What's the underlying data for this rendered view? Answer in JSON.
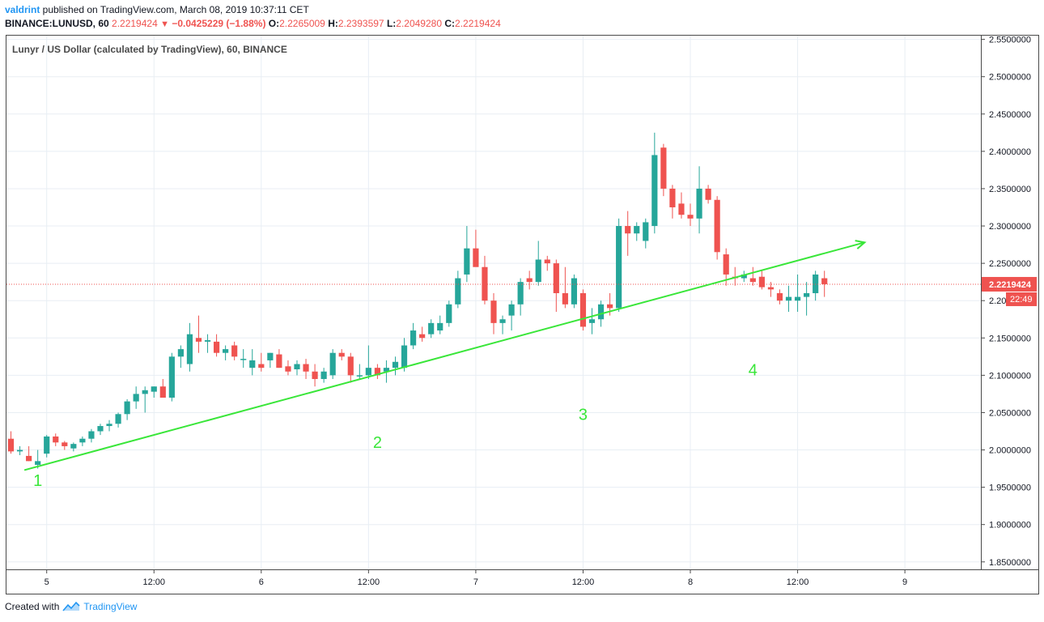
{
  "header": {
    "user": "valdrint",
    "published_text": " published on TradingView.com, March 08, 2019 10:37:11 CET",
    "symbol_interval": "BINANCE:LUNUSD, 60",
    "last_price": "2.2219424",
    "change": "−0.0425229 (−1.88%)",
    "o_label": "O:",
    "o_value": "2.2265009",
    "h_label": "H:",
    "h_value": "2.2393597",
    "l_label": "L:",
    "l_value": "2.2049280",
    "c_label": "C:",
    "c_value": "2.2219424"
  },
  "footer": {
    "created_with": "Created with",
    "brand": "TradingView"
  },
  "colors": {
    "up": "#26a69a",
    "down": "#ef5350",
    "trendline": "#39e639",
    "annotation": "#39e639",
    "grid": "#e8eef4",
    "axis_text": "#131722",
    "price_line": "#ef5350"
  },
  "chart_data": {
    "type": "candlestick",
    "title": "Lunyr / US Dollar (calculated by TradingView), 60, BINANCE",
    "y_ticks": [
      "2.5500000",
      "2.5000000",
      "2.4500000",
      "2.4000000",
      "2.3500000",
      "2.3000000",
      "2.2500000",
      "2.2000000",
      "2.1500000",
      "2.1000000",
      "2.0500000",
      "2.0000000",
      "1.9500000",
      "1.9000000",
      "1.8500000"
    ],
    "ylim": [
      1.84,
      2.555
    ],
    "x_ticks": [
      {
        "label": "5",
        "bar": 4
      },
      {
        "label": "12:00",
        "bar": 16
      },
      {
        "label": "6",
        "bar": 28
      },
      {
        "label": "12:00",
        "bar": 40
      },
      {
        "label": "7",
        "bar": 52
      },
      {
        "label": "12:00",
        "bar": 64
      },
      {
        "label": "8",
        "bar": 76
      },
      {
        "label": "12:00",
        "bar": 88
      },
      {
        "label": "9",
        "bar": 100
      }
    ],
    "xlim": [
      -0.5,
      108.5
    ],
    "candles": [
      [
        2.015,
        2.025,
        1.995,
        1.998
      ],
      [
        1.998,
        2.005,
        1.993,
        2.0
      ],
      [
        1.992,
        2.005,
        1.985,
        1.985
      ],
      [
        1.98,
        2.0,
        1.975,
        1.985
      ],
      [
        1.995,
        2.02,
        1.99,
        2.018
      ],
      [
        2.018,
        2.022,
        2.005,
        2.01
      ],
      [
        2.01,
        2.012,
        2.0,
        2.005
      ],
      [
        2.002,
        2.01,
        1.998,
        2.008
      ],
      [
        2.01,
        2.018,
        2.005,
        2.015
      ],
      [
        2.015,
        2.028,
        2.01,
        2.025
      ],
      [
        2.025,
        2.035,
        2.02,
        2.032
      ],
      [
        2.032,
        2.04,
        2.025,
        2.035
      ],
      [
        2.035,
        2.05,
        2.03,
        2.048
      ],
      [
        2.048,
        2.068,
        2.04,
        2.065
      ],
      [
        2.065,
        2.085,
        2.055,
        2.075
      ],
      [
        2.075,
        2.085,
        2.05,
        2.08
      ],
      [
        2.078,
        2.085,
        2.07,
        2.085
      ],
      [
        2.085,
        2.095,
        2.075,
        2.07
      ],
      [
        2.07,
        2.13,
        2.065,
        2.125
      ],
      [
        2.125,
        2.14,
        2.11,
        2.135
      ],
      [
        2.115,
        2.17,
        2.105,
        2.155
      ],
      [
        2.15,
        2.18,
        2.13,
        2.145
      ],
      [
        2.145,
        2.155,
        2.13,
        2.147
      ],
      [
        2.145,
        2.155,
        2.125,
        2.13
      ],
      [
        2.13,
        2.14,
        2.12,
        2.135
      ],
      [
        2.14,
        2.145,
        2.12,
        2.125
      ],
      [
        2.122,
        2.135,
        2.11,
        2.122
      ],
      [
        2.11,
        2.135,
        2.1,
        2.12
      ],
      [
        2.115,
        2.13,
        2.105,
        2.11
      ],
      [
        2.12,
        2.13,
        2.11,
        2.13
      ],
      [
        2.128,
        2.135,
        2.11,
        2.11
      ],
      [
        2.112,
        2.12,
        2.1,
        2.105
      ],
      [
        2.108,
        2.12,
        2.1,
        2.115
      ],
      [
        2.115,
        2.122,
        2.095,
        2.105
      ],
      [
        2.105,
        2.115,
        2.085,
        2.095
      ],
      [
        2.095,
        2.11,
        2.09,
        2.105
      ],
      [
        2.1,
        2.135,
        2.095,
        2.13
      ],
      [
        2.13,
        2.135,
        2.12,
        2.125
      ],
      [
        2.125,
        2.13,
        2.09,
        2.1
      ],
      [
        2.1,
        2.115,
        2.095,
        2.1
      ],
      [
        2.1,
        2.14,
        2.095,
        2.11
      ],
      [
        2.11,
        2.115,
        2.095,
        2.1
      ],
      [
        2.105,
        2.12,
        2.09,
        2.11
      ],
      [
        2.11,
        2.125,
        2.1,
        2.118
      ],
      [
        2.11,
        2.15,
        2.105,
        2.14
      ],
      [
        2.14,
        2.17,
        2.135,
        2.16
      ],
      [
        2.155,
        2.165,
        2.145,
        2.15
      ],
      [
        2.155,
        2.175,
        2.15,
        2.17
      ],
      [
        2.16,
        2.18,
        2.155,
        2.17
      ],
      [
        2.17,
        2.2,
        2.165,
        2.195
      ],
      [
        2.195,
        2.24,
        2.19,
        2.23
      ],
      [
        2.235,
        2.3,
        2.225,
        2.27
      ],
      [
        2.27,
        2.295,
        2.25,
        2.245
      ],
      [
        2.245,
        2.26,
        2.195,
        2.2
      ],
      [
        2.2,
        2.21,
        2.155,
        2.17
      ],
      [
        2.17,
        2.18,
        2.155,
        2.175
      ],
      [
        2.18,
        2.2,
        2.16,
        2.195
      ],
      [
        2.195,
        2.23,
        2.18,
        2.225
      ],
      [
        2.23,
        2.24,
        2.215,
        2.225
      ],
      [
        2.225,
        2.28,
        2.22,
        2.255
      ],
      [
        2.255,
        2.26,
        2.24,
        2.25
      ],
      [
        2.25,
        2.255,
        2.185,
        2.21
      ],
      [
        2.21,
        2.245,
        2.19,
        2.195
      ],
      [
        2.195,
        2.235,
        2.19,
        2.23
      ],
      [
        2.21,
        2.215,
        2.16,
        2.165
      ],
      [
        2.17,
        2.19,
        2.155,
        2.175
      ],
      [
        2.175,
        2.2,
        2.165,
        2.195
      ],
      [
        2.195,
        2.21,
        2.18,
        2.19
      ],
      [
        2.19,
        2.31,
        2.185,
        2.3
      ],
      [
        2.3,
        2.32,
        2.26,
        2.29
      ],
      [
        2.29,
        2.305,
        2.28,
        2.3
      ],
      [
        2.28,
        2.31,
        2.27,
        2.305
      ],
      [
        2.3,
        2.425,
        2.29,
        2.395
      ],
      [
        2.405,
        2.41,
        2.34,
        2.35
      ],
      [
        2.35,
        2.355,
        2.31,
        2.325
      ],
      [
        2.33,
        2.345,
        2.31,
        2.315
      ],
      [
        2.315,
        2.33,
        2.3,
        2.31
      ],
      [
        2.31,
        2.38,
        2.29,
        2.35
      ],
      [
        2.35,
        2.355,
        2.33,
        2.335
      ],
      [
        2.335,
        2.34,
        2.255,
        2.265
      ],
      [
        2.262,
        2.27,
        2.22,
        2.235
      ],
      [
        2.232,
        2.245,
        2.22,
        2.23
      ],
      [
        2.23,
        2.24,
        2.225,
        2.235
      ],
      [
        2.23,
        2.245,
        2.22,
        2.225
      ],
      [
        2.232,
        2.24,
        2.215,
        2.218
      ],
      [
        2.218,
        2.225,
        2.205,
        2.215
      ],
      [
        2.21,
        2.215,
        2.195,
        2.2
      ],
      [
        2.2,
        2.22,
        2.185,
        2.205
      ],
      [
        2.2,
        2.235,
        2.185,
        2.205
      ],
      [
        2.205,
        2.225,
        2.18,
        2.21
      ],
      [
        2.21,
        2.24,
        2.2,
        2.235
      ],
      [
        2.23,
        2.24,
        2.205,
        2.222
      ]
    ],
    "trendline": {
      "x0": 1.5,
      "y0": 1.973,
      "x1": 95.5,
      "y1": 2.278
    },
    "annotations": [
      {
        "text": "1",
        "bar": 3,
        "price": 1.952
      },
      {
        "text": "2",
        "bar": 41,
        "price": 2.003
      },
      {
        "text": "3",
        "bar": 64,
        "price": 2.04
      },
      {
        "text": "4",
        "bar": 83,
        "price": 2.1
      }
    ],
    "last_price_label": "2.2219424",
    "last_price_value": 2.2219424,
    "countdown_label": "22:49"
  }
}
